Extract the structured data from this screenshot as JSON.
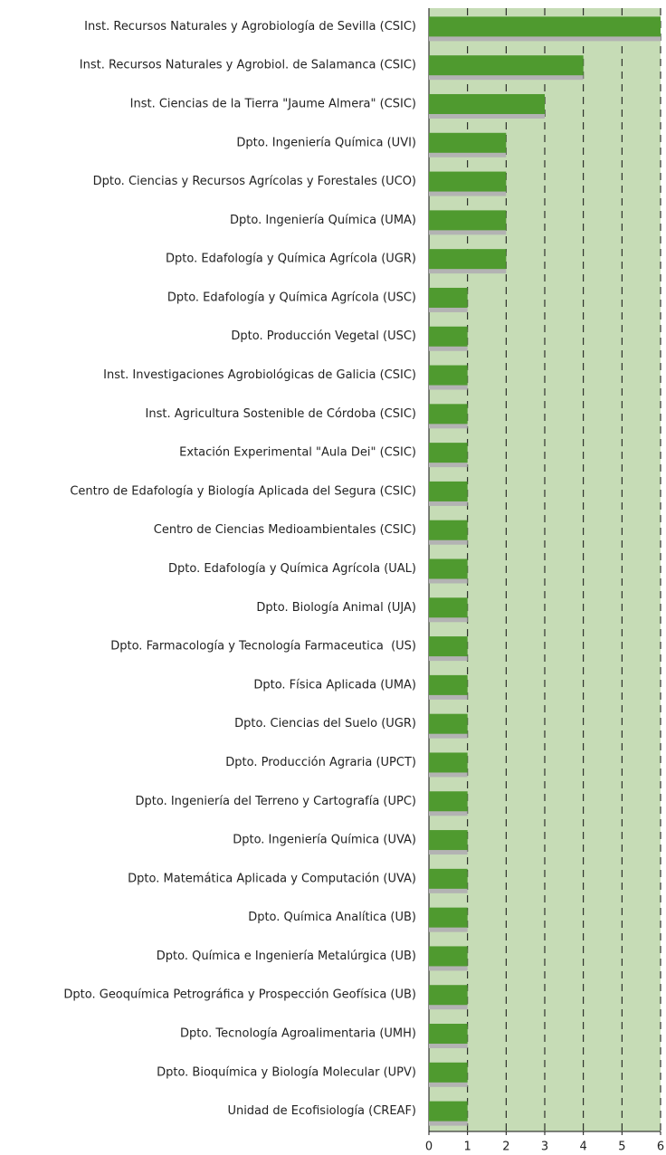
{
  "chart_data": {
    "type": "bar",
    "orientation": "horizontal",
    "categories": [
      "Inst. Recursos Naturales y Agrobiología de Sevilla (CSIC)",
      "Inst. Recursos Naturales y Agrobiol. de Salamanca (CSIC)",
      "Inst. Ciencias de la Tierra \"Jaume Almera\" (CSIC)",
      "Dpto. Ingeniería Química (UVI)",
      "Dpto. Ciencias y Recursos Agrícolas y Forestales (UCO)",
      "Dpto. Ingeniería Química (UMA)",
      "Dpto. Edafología y Química Agrícola (UGR)",
      "Dpto. Edafología y Química Agrícola (USC)",
      "Dpto. Producción Vegetal (USC)",
      "Inst. Investigaciones Agrobiológicas de Galicia (CSIC)",
      "Inst. Agricultura Sostenible de Córdoba (CSIC)",
      "Extación Experimental \"Aula Dei\" (CSIC)",
      "Centro de Edafología y Biología Aplicada del Segura (CSIC)",
      "Centro de Ciencias Medioambientales (CSIC)",
      "Dpto. Edafología y Química Agrícola (UAL)",
      "Dpto. Biología Animal (UJA)",
      "Dpto. Farmacología y Tecnología Farmaceutica  (US)",
      "Dpto. Física Aplicada (UMA)",
      "Dpto. Ciencias del Suelo (UGR)",
      "Dpto. Producción Agraria (UPCT)",
      "Dpto. Ingeniería del Terreno y Cartografía (UPC)",
      "Dpto. Ingeniería Química (UVA)",
      "Dpto. Matemática Aplicada y Computación (UVA)",
      "Dpto. Química Analítica (UB)",
      "Dpto. Química e Ingeniería Metalúrgica (UB)",
      "Dpto. Geoquímica Petrográfica y Prospección Geofísica (UB)",
      "Dpto. Tecnología Agroalimentaria (UMH)",
      "Dpto. Bioquímica y Biología Molecular (UPV)",
      "Unidad de Ecofisiología (CREAF)"
    ],
    "values": [
      6,
      4,
      3,
      2,
      2,
      2,
      2,
      1,
      1,
      1,
      1,
      1,
      1,
      1,
      1,
      1,
      1,
      1,
      1,
      1,
      1,
      1,
      1,
      1,
      1,
      1,
      1,
      1,
      1
    ],
    "color": "#4f9a2f",
    "xlim": [
      0,
      6
    ],
    "xticks": [
      0,
      1,
      2,
      3,
      4,
      5,
      6
    ],
    "grid": true
  }
}
